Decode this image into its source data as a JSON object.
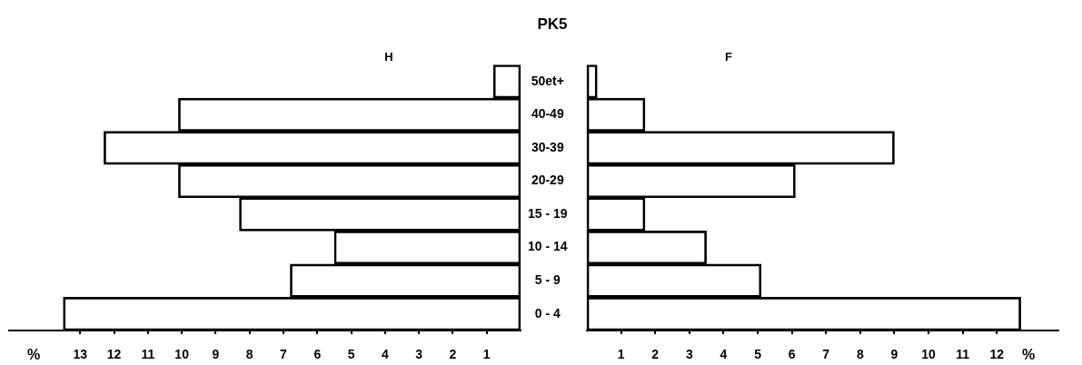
{
  "chart_data": [
    {
      "type": "bar",
      "orientation": "horizontal",
      "title": "PK5",
      "xlabel": "%",
      "categories": [
        "50et+",
        "40-49",
        "30-39",
        "20-29",
        "15 - 19",
        "10 - 14",
        "5 - 9",
        "0 - 4"
      ],
      "series": [
        {
          "name": "H",
          "color": "#000000",
          "values": [
            0.8,
            10.1,
            12.3,
            10.1,
            8.3,
            5.5,
            6.8,
            13.5
          ]
        }
      ],
      "xlim": [
        15.1,
        0
      ],
      "xticks": [
        13,
        12,
        11,
        10,
        9,
        8,
        7,
        6,
        5,
        4,
        3,
        2,
        1
      ]
    },
    {
      "type": "bar",
      "orientation": "horizontal",
      "xlabel": "%",
      "categories": [
        null,
        null,
        null,
        null,
        null,
        null,
        null,
        null
      ],
      "series": [
        {
          "name": "F",
          "color": "#000000",
          "values": [
            0.3,
            1.7,
            9.0,
            6.1,
            1.7,
            3.5,
            5.1,
            12.7
          ]
        }
      ],
      "xlim": [
        0,
        13.8
      ],
      "xticks": [
        1,
        2,
        3,
        4,
        5,
        6,
        7,
        8,
        9,
        10,
        11,
        12
      ]
    }
  ]
}
